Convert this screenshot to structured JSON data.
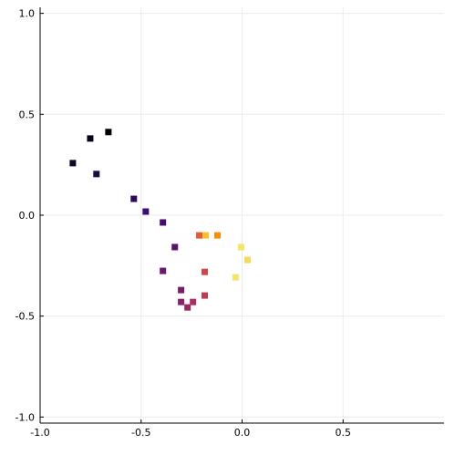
{
  "chart_data": {
    "type": "scatter",
    "x": [
      -0.662,
      -0.752,
      -0.838,
      -0.721,
      -0.536,
      -0.477,
      -0.392,
      -0.333,
      -0.392,
      -0.302,
      -0.302,
      -0.27,
      -0.243,
      -0.185,
      -0.185,
      -0.212,
      -0.18,
      -0.122,
      -0.005,
      0.027,
      -0.032
    ],
    "values": [
      0.412,
      0.38,
      0.258,
      0.204,
      0.081,
      0.018,
      -0.036,
      -0.158,
      -0.276,
      -0.371,
      -0.43,
      -0.457,
      -0.43,
      -0.398,
      -0.281,
      -0.1,
      -0.1,
      -0.1,
      -0.158,
      -0.222,
      -0.308
    ],
    "colors": [
      "#000004",
      "#05041a",
      "#0d0829",
      "#1b0c41",
      "#2b0b57",
      "#3b0f70",
      "#4a0c6b",
      "#5c126e",
      "#6a176e",
      "#781c6d",
      "#89226a",
      "#992765",
      "#a8305f",
      "#c03a51",
      "#d24644",
      "#e55c30",
      "#fbbf2a",
      "#f98c0a",
      "#f6e663",
      "#f3dc5c",
      "#f5e56a"
    ],
    "xlim": [
      -1.0,
      1.0
    ],
    "ylim": [
      -1.03,
      1.03
    ],
    "xticks": [
      {
        "value": -1,
        "label": "-1.0"
      },
      -0.5,
      {
        "value": 0,
        "label": "0.0"
      },
      0.5
    ],
    "yticks": [
      {
        "value": -1,
        "label": "-1.0"
      },
      -0.5,
      {
        "value": 0,
        "label": "0.0"
      },
      0.5,
      {
        "value": 1,
        "label": "1.0"
      }
    ],
    "grid": true
  }
}
